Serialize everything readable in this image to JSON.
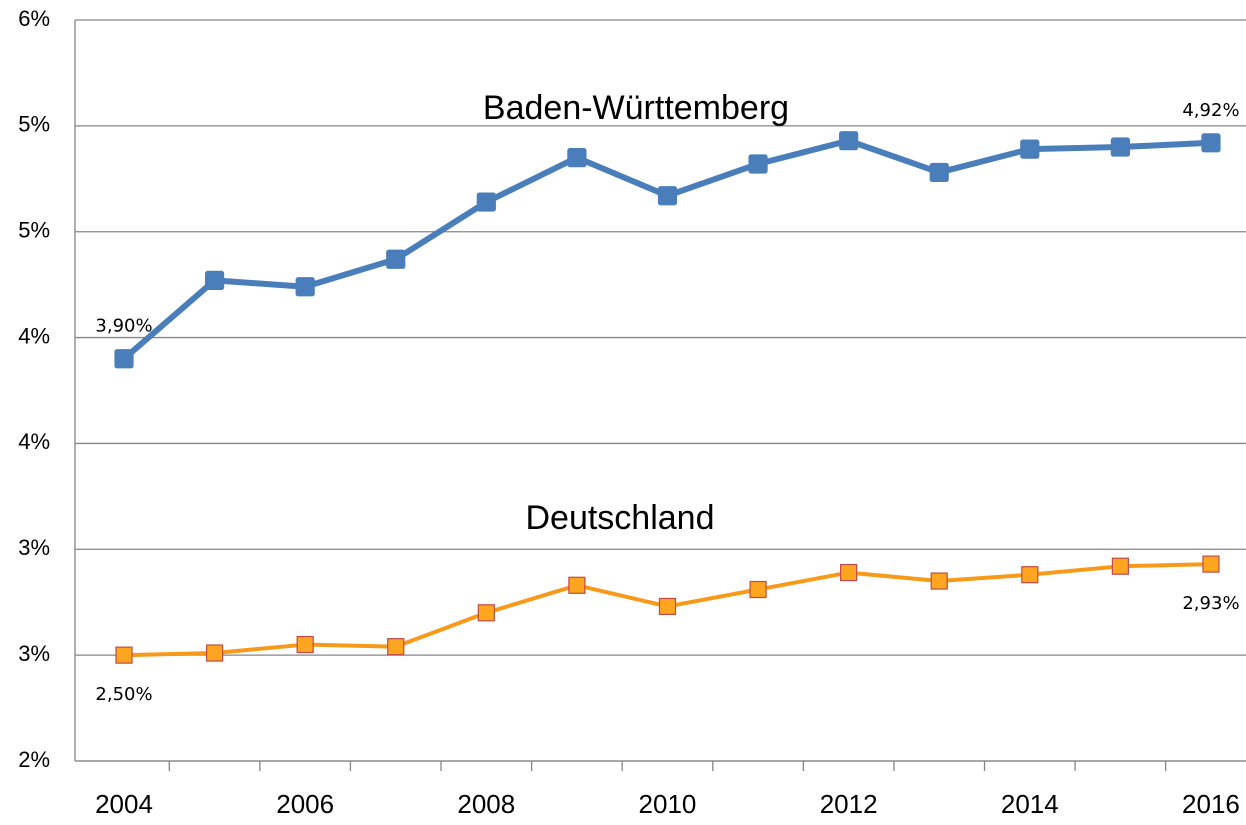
{
  "chart_data": {
    "type": "line",
    "categories": [
      "2004",
      null,
      "2006",
      null,
      "2008",
      null,
      "2010",
      null,
      "2012",
      null,
      "2014",
      null,
      "2016"
    ],
    "series": [
      {
        "name": "Baden-Württemberg",
        "color": "#4a7ebb",
        "marker_color": "#4a7ebb",
        "marker_edge": "#4a7ebb",
        "values": [
          3.9,
          4.27,
          4.24,
          4.37,
          4.64,
          4.85,
          4.67,
          4.82,
          4.93,
          4.78,
          4.89,
          4.9,
          4.92
        ],
        "value_labels": [
          "3,90%",
          null,
          null,
          null,
          null,
          null,
          null,
          null,
          null,
          null,
          null,
          null,
          "4,92%"
        ]
      },
      {
        "name": "Deutschland",
        "color": "#f79a1a",
        "marker_color": "#ffa51f",
        "marker_edge": "#be4b48",
        "values": [
          2.5,
          2.51,
          2.55,
          2.54,
          2.7,
          2.83,
          2.73,
          2.81,
          2.89,
          2.85,
          2.88,
          2.92,
          2.93
        ],
        "value_labels": [
          "2,50%",
          null,
          null,
          null,
          null,
          null,
          null,
          null,
          null,
          null,
          null,
          null,
          "2,93%"
        ]
      }
    ],
    "ylim": [
      2,
      5.5
    ],
    "yticks": [
      {
        "value": 2,
        "label": "2%"
      },
      {
        "value": 2.5,
        "label": "3%"
      },
      {
        "value": 3,
        "label": "3%"
      },
      {
        "value": 3.5,
        "label": "4%"
      },
      {
        "value": 4,
        "label": "4%"
      },
      {
        "value": 4.5,
        "label": "5%"
      },
      {
        "value": 5,
        "label": "5%"
      },
      {
        "value": 5.5,
        "label": "6%"
      }
    ],
    "grid": true
  }
}
